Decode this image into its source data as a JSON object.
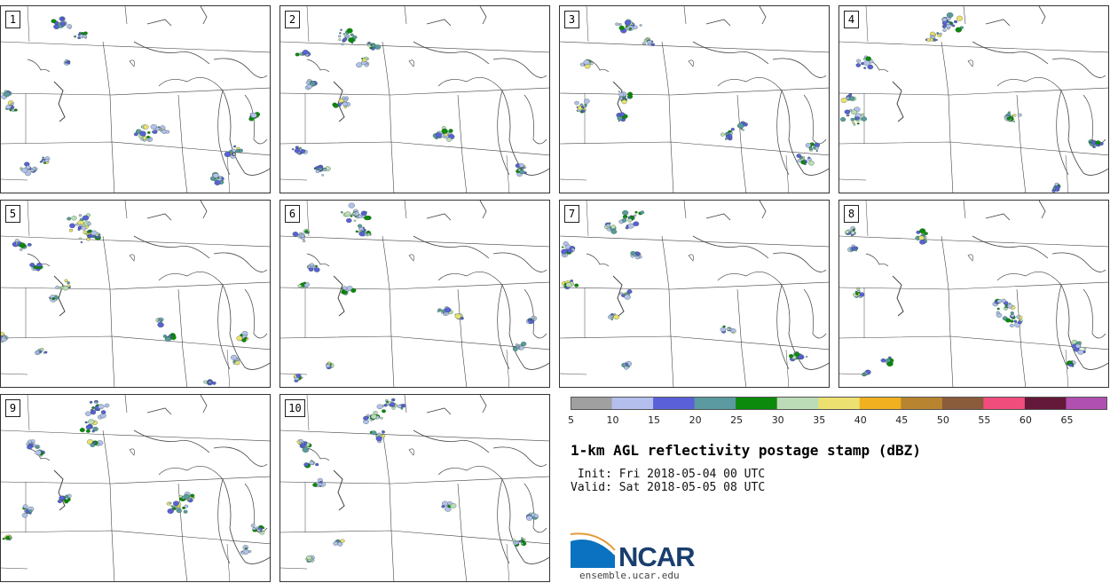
{
  "panels": [
    {
      "label": "1"
    },
    {
      "label": "2"
    },
    {
      "label": "3"
    },
    {
      "label": "4"
    },
    {
      "label": "5"
    },
    {
      "label": "6"
    },
    {
      "label": "7"
    },
    {
      "label": "8"
    },
    {
      "label": "9"
    },
    {
      "label": "10"
    }
  ],
  "colorbar": {
    "ticks": [
      "5",
      "10",
      "15",
      "20",
      "25",
      "30",
      "35",
      "40",
      "45",
      "50",
      "55",
      "60",
      "65"
    ],
    "colors": [
      "#a0a0a0",
      "#b4bfee",
      "#5a60d8",
      "#5a9aa0",
      "#0b8a0b",
      "#bcdcb8",
      "#ece070",
      "#f0b020",
      "#b88430",
      "#8a5c3c",
      "#f04c7c",
      "#64183a",
      "#b050b0"
    ]
  },
  "title": "1-km AGL reflectivity postage stamp (dBZ)",
  "init": " Init: Fri 2018-05-04 00 UTC",
  "valid": "Valid: Sat 2018-05-05 08 UTC",
  "logo": {
    "name": "NCAR",
    "url": "ensemble.ucar.edu"
  }
}
